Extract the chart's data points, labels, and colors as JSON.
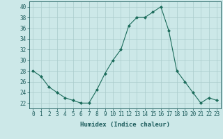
{
  "x": [
    0,
    1,
    2,
    3,
    4,
    5,
    6,
    7,
    8,
    9,
    10,
    11,
    12,
    13,
    14,
    15,
    16,
    17,
    18,
    19,
    20,
    21,
    22,
    23
  ],
  "y": [
    28,
    27,
    25,
    24,
    23,
    22.5,
    22,
    22,
    24.5,
    27.5,
    30,
    32,
    36.5,
    38,
    38,
    39,
    40,
    35.5,
    28,
    26,
    24,
    22,
    23,
    22.5
  ],
  "line_color": "#1a6b5a",
  "marker": "D",
  "marker_size": 2,
  "bg_color": "#cce8e8",
  "grid_color": "#aacccc",
  "tick_color": "#1a5a5a",
  "xlabel": "Humidex (Indice chaleur)",
  "ylim": [
    21,
    41
  ],
  "yticks": [
    22,
    24,
    26,
    28,
    30,
    32,
    34,
    36,
    38,
    40
  ],
  "xticks": [
    0,
    1,
    2,
    3,
    4,
    5,
    6,
    7,
    8,
    9,
    10,
    11,
    12,
    13,
    14,
    15,
    16,
    17,
    18,
    19,
    20,
    21,
    22,
    23
  ],
  "label_fontsize": 6.5,
  "tick_fontsize": 5.5
}
